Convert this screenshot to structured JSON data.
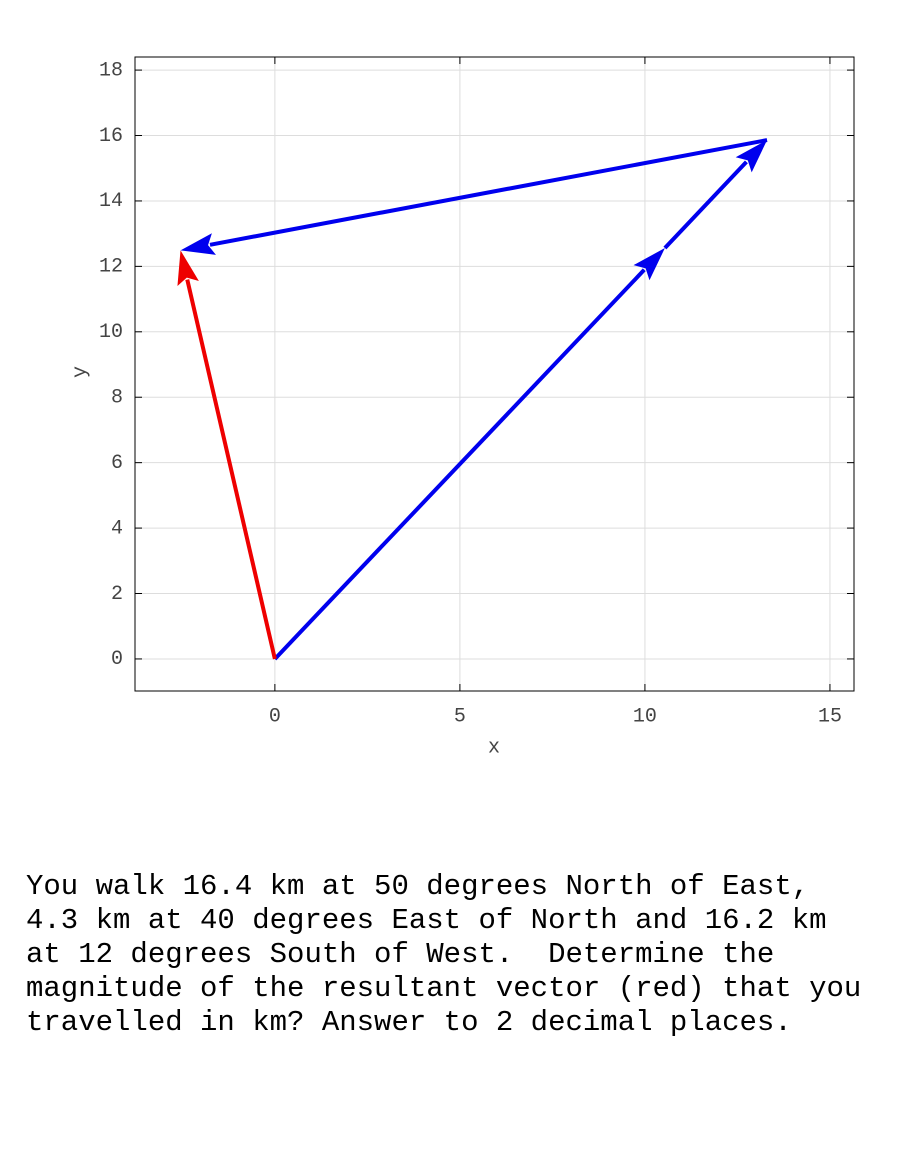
{
  "chart_data": {
    "type": "vector",
    "x_label": "x",
    "y_label": "y",
    "xlim": [
      -3.78,
      15.65
    ],
    "ylim": [
      -0.98,
      18.4
    ],
    "xticks": [
      0,
      5,
      10,
      15
    ],
    "yticks": [
      0,
      2,
      4,
      6,
      8,
      10,
      12,
      14,
      16,
      18
    ],
    "grid": true,
    "vectors": [
      {
        "x0": 0,
        "y0": 0,
        "x1": 10.54,
        "y1": 12.56,
        "color": "#0000ee"
      },
      {
        "x0": 10.54,
        "y0": 12.56,
        "x1": 13.3,
        "y1": 15.86,
        "color": "#0000ee"
      },
      {
        "x0": 13.3,
        "y0": 15.86,
        "x1": -2.55,
        "y1": 12.49,
        "color": "#0000ee"
      },
      {
        "x0": 0,
        "y0": 0,
        "x1": -2.55,
        "y1": 12.49,
        "color": "#ee0000"
      }
    ]
  },
  "question": {
    "lines": [
      "You walk 16.4 km at 50 degrees North of East,",
      "4.3 km at 40 degrees East of North and 16.2 km",
      "at 12 degrees South of West.  Determine the",
      "magnitude of the resultant vector (red) that you",
      "travelled in km? Answer to 2 decimal places."
    ]
  }
}
